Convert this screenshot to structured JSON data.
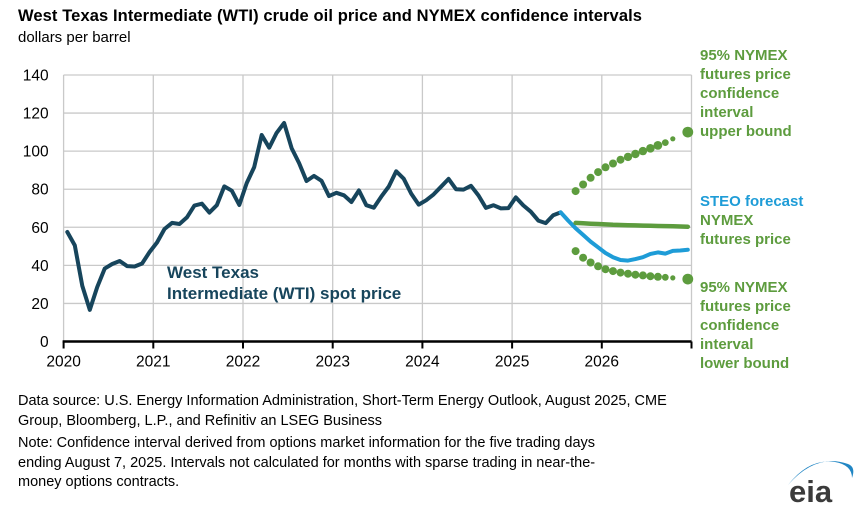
{
  "title": "West Texas Intermediate (WTI) crude oil price and NYMEX confidence intervals",
  "subtitle": "dollars per barrel",
  "colors": {
    "spot": "#17455C",
    "forecast": "#1E9CD7",
    "green": "#5D9C3E",
    "grid": "#C9C9C9",
    "axis": "#000000",
    "logo_gray": "#3B3B3B",
    "logo_blue": "#2186C4"
  },
  "annotations": {
    "upper_bound": [
      "95% NYMEX",
      "futures price",
      "confidence",
      "interval",
      "upper bound"
    ],
    "steo_blue": "STEO forecast",
    "steo_green": [
      "NYMEX",
      "futures price"
    ],
    "lower_bound": [
      "95% NYMEX",
      "futures price",
      "confidence",
      "interval",
      "lower bound"
    ],
    "spot": [
      "West Texas",
      "Intermediate (WTI) spot price"
    ]
  },
  "footer": {
    "lines": [
      "Data source: U.S. Energy Information Administration, Short-Term Energy Outlook, August 2025, CME",
      "Group, Bloomberg, L.P., and Refinitiv an LSEG Business",
      "Note: Confidence interval derived from options market information for the five trading days",
      "ending August 7, 2025. Intervals not calculated for months with sparse trading in near-the-",
      "money options contracts."
    ]
  },
  "logo_text": "eia",
  "chart_data": {
    "type": "line",
    "title": "West Texas Intermediate (WTI) crude oil price and NYMEX confidence intervals",
    "ylabel": "dollars per barrel",
    "xlim": [
      2020,
      2027
    ],
    "ylim": [
      0,
      140
    ],
    "x_ticks": [
      2020,
      2021,
      2022,
      2023,
      2024,
      2025,
      2026
    ],
    "y_ticks": [
      0,
      20,
      40,
      60,
      80,
      100,
      120,
      140
    ],
    "grid": true,
    "legend_position": "right-annotations",
    "series": [
      {
        "name": "West Texas Intermediate (WTI) spot price",
        "kind": "line",
        "color_key": "spot",
        "width": 4,
        "start_year": 2020,
        "start_month": 1,
        "values": [
          57.5,
          50.5,
          29.2,
          16.6,
          28.6,
          38.3,
          40.7,
          42.3,
          39.6,
          39.4,
          41.0,
          47.0,
          52.0,
          59.1,
          62.3,
          61.7,
          65.2,
          71.4,
          72.4,
          67.7,
          71.6,
          81.5,
          79.2,
          71.7,
          83.2,
          91.6,
          108.5,
          101.8,
          109.6,
          114.8,
          101.6,
          93.7,
          84.3,
          87.0,
          84.4,
          76.4,
          78.1,
          76.8,
          73.3,
          79.4,
          71.6,
          70.3,
          76.1,
          81.4,
          89.4,
          85.5,
          77.7,
          71.9,
          74.2,
          77.3,
          81.3,
          85.4,
          80.0,
          79.8,
          81.8,
          76.7,
          70.2,
          71.6,
          69.9,
          70.1,
          75.7,
          71.5,
          68.2,
          63.5,
          62.2,
          66.3,
          67.8
        ]
      },
      {
        "name": "STEO forecast NYMEX futures price",
        "kind": "line",
        "color_key": "forecast",
        "width": 4,
        "start_year": 2025,
        "start_month": 7,
        "values": [
          67.8,
          63.5,
          59.5,
          56.0,
          52.5,
          49.5,
          46.5,
          44.3,
          42.8,
          42.5,
          43.3,
          44.3,
          46.0,
          46.8,
          46.2,
          47.6,
          47.8,
          48.2
        ]
      },
      {
        "name": "NYMEX futures price",
        "kind": "line",
        "color_key": "green",
        "width": 4.5,
        "start_year": 2025,
        "start_month": 9,
        "values": [
          62.3,
          62.1,
          61.9,
          61.7,
          61.5,
          61.3,
          61.2,
          61.1,
          61.0,
          60.9,
          60.8,
          60.7,
          60.6,
          60.5,
          60.4,
          60.3
        ]
      },
      {
        "name": "95% NYMEX futures price confidence interval upper bound",
        "kind": "dots",
        "color_key": "green",
        "start_year": 2025,
        "start_month": 9,
        "points": [
          {
            "v": 79,
            "r": 4
          },
          {
            "v": 82.5,
            "r": 4
          },
          {
            "v": 86,
            "r": 4
          },
          {
            "v": 89,
            "r": 4
          },
          {
            "v": 91.5,
            "r": 4
          },
          {
            "v": 93.5,
            "r": 4
          },
          {
            "v": 95.5,
            "r": 4
          },
          {
            "v": 97,
            "r": 4.2
          },
          {
            "v": 98.5,
            "r": 4.2
          },
          {
            "v": 100,
            "r": 4.2
          },
          {
            "v": 101.5,
            "r": 4.3
          },
          {
            "v": 103,
            "r": 4.4
          },
          {
            "v": 104.5,
            "r": 3.4
          },
          {
            "v": 106.5,
            "r": 2.6
          },
          null,
          {
            "v": 110,
            "r": 5.4
          }
        ]
      },
      {
        "name": "95% NYMEX futures price confidence interval lower bound",
        "kind": "dots",
        "color_key": "green",
        "start_year": 2025,
        "start_month": 9,
        "points": [
          {
            "v": 47.5,
            "r": 4
          },
          {
            "v": 44,
            "r": 4
          },
          {
            "v": 41.5,
            "r": 4
          },
          {
            "v": 39.5,
            "r": 4
          },
          {
            "v": 38,
            "r": 4
          },
          {
            "v": 37,
            "r": 4
          },
          {
            "v": 36.2,
            "r": 4
          },
          {
            "v": 35.6,
            "r": 4
          },
          {
            "v": 35.1,
            "r": 4
          },
          {
            "v": 34.7,
            "r": 4
          },
          {
            "v": 34.3,
            "r": 4
          },
          {
            "v": 34,
            "r": 4
          },
          {
            "v": 33.7,
            "r": 3.4
          },
          {
            "v": 33.4,
            "r": 2.6
          },
          null,
          {
            "v": 32.8,
            "r": 5.4
          }
        ]
      }
    ]
  }
}
